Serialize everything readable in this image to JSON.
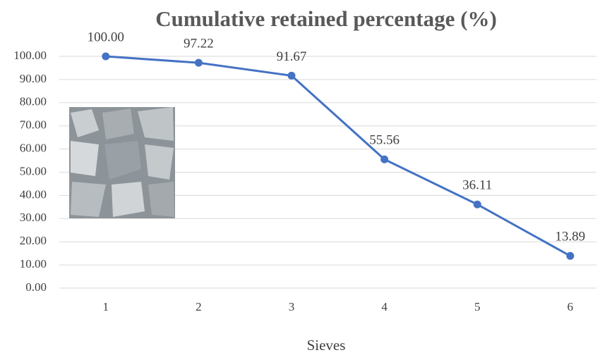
{
  "chart_data": {
    "type": "line",
    "title": "Cumulative retained percentage (%)",
    "x_label": "Sieves",
    "categories": [
      "1",
      "2",
      "3",
      "4",
      "5",
      "6"
    ],
    "values": [
      100,
      97.22,
      91.67,
      55.56,
      36.11,
      13.89
    ],
    "value_labels": [
      "100.00",
      "97.22",
      "91.67",
      "55.56",
      "36.11",
      "13.89"
    ],
    "color": "#4472c4",
    "ylim": [
      0,
      100
    ],
    "yticks": [
      {
        "value": 0,
        "label": "0.00"
      },
      {
        "value": 10,
        "label": "10.00"
      },
      {
        "value": 20,
        "label": "20.00"
      },
      {
        "value": 30,
        "label": "30.00"
      },
      {
        "value": 40,
        "label": "40.00"
      },
      {
        "value": 50,
        "label": "50.00"
      },
      {
        "value": 60,
        "label": "60.00"
      },
      {
        "value": 70,
        "label": "70.00"
      },
      {
        "value": 80,
        "label": "80.00"
      },
      {
        "value": 90,
        "label": "90.00"
      },
      {
        "value": 100,
        "label": "100.00"
      }
    ],
    "grid": true
  }
}
